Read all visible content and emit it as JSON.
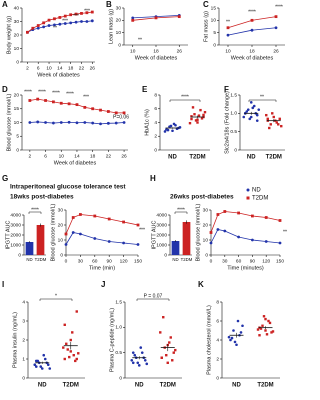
{
  "chart_data": [
    {
      "type": "line",
      "label": "A",
      "xlabel": "Week of diabetes",
      "ylabel": "Body weight (g)",
      "x": [
        2,
        4,
        6,
        8,
        10,
        12,
        14,
        16,
        18,
        20,
        22,
        24,
        26
      ],
      "xlim": [
        0,
        27
      ],
      "xticks": [
        2,
        6,
        10,
        14,
        18,
        22,
        26
      ],
      "ylim": [
        0,
        40
      ],
      "yticks": [
        0,
        10,
        20,
        30,
        40
      ],
      "series": [
        {
          "name": "ND",
          "color": "#2233aa",
          "marker": "circle",
          "values": [
            22,
            24,
            25,
            26,
            27,
            27.5,
            28,
            28.5,
            29,
            29.5,
            30,
            30,
            30.5
          ]
        },
        {
          "name": "T2DM",
          "color": "#cc2222",
          "marker": "square",
          "values": [
            22,
            25,
            27,
            29,
            31,
            32,
            33,
            34,
            35,
            35.5,
            36,
            36.5,
            37
          ]
        }
      ],
      "annotations": [
        "**",
        "***",
        "***",
        "***"
      ]
    },
    {
      "type": "line",
      "label": "B",
      "xlabel": "Week of diabetes",
      "ylabel": "Lean mass (g)",
      "x": [
        10,
        18,
        26
      ],
      "xlim": [
        7,
        29
      ],
      "xticks": [
        10,
        18,
        26
      ],
      "ylim": [
        0,
        30
      ],
      "yticks": [
        0,
        10,
        20,
        30
      ],
      "series": [
        {
          "name": "ND",
          "color": "#2233aa",
          "marker": "circle",
          "values": [
            22,
            23,
            24
          ]
        },
        {
          "name": "T2DM",
          "color": "#cc2222",
          "marker": "square",
          "values": [
            20,
            22,
            23
          ]
        }
      ],
      "annotations": [
        "**"
      ]
    },
    {
      "type": "line",
      "label": "C",
      "xlabel": "Week of diabetes",
      "ylabel": "Fat mass (g)",
      "x": [
        10,
        18,
        26
      ],
      "xlim": [
        7,
        29
      ],
      "xticks": [
        10,
        18,
        26
      ],
      "ylim": [
        0,
        15
      ],
      "yticks": [
        0,
        5,
        10,
        15
      ],
      "series": [
        {
          "name": "ND",
          "color": "#2233aa",
          "marker": "circle",
          "values": [
            4,
            6,
            7
          ]
        },
        {
          "name": "T2DM",
          "color": "#cc2222",
          "marker": "square",
          "values": [
            7,
            10,
            11.5
          ]
        }
      ],
      "annotations": [
        "**",
        "****",
        "****"
      ]
    },
    {
      "type": "line",
      "label": "D",
      "xlabel": "Week of diabetes",
      "ylabel": "Blood glucose (mmol/L)",
      "x": [
        2,
        4,
        6,
        8,
        10,
        12,
        14,
        16,
        18,
        20,
        22,
        24,
        26
      ],
      "xlim": [
        0,
        27
      ],
      "xticks": [
        2,
        6,
        10,
        14,
        18,
        22,
        26
      ],
      "ylim": [
        0,
        20
      ],
      "yticks": [
        0,
        5,
        10,
        15,
        20
      ],
      "series": [
        {
          "name": "ND",
          "color": "#2233aa",
          "marker": "circle",
          "values": [
            10,
            10.2,
            10,
            9.8,
            10,
            10.1,
            9.9,
            10,
            9.8,
            9.5,
            9.7,
            9.8,
            10
          ]
        },
        {
          "name": "T2DM",
          "color": "#cc2222",
          "marker": "square",
          "values": [
            18,
            18.5,
            18,
            17.5,
            17,
            16.8,
            16.5,
            15.5,
            15,
            14.5,
            14,
            13.5,
            13.5
          ]
        }
      ],
      "annotations": [
        "****",
        "****",
        "****",
        "****",
        "***",
        "P=0.06"
      ]
    },
    {
      "type": "strip",
      "label": "E",
      "ylabel": "HbA1c (%)",
      "categories": [
        "ND",
        "T2DM"
      ],
      "ylim": [
        0,
        8
      ],
      "yticks": [
        0,
        2,
        4,
        6,
        8
      ],
      "groups": [
        {
          "color": "#2233aa",
          "values": [
            3.0,
            3.4,
            2.8,
            3.6,
            3.2,
            2.9,
            3.5,
            3.8,
            3.1,
            2.7,
            3.3,
            3.0
          ],
          "mean": 3.2,
          "error": 0.1
        },
        {
          "color": "#cc2222",
          "values": [
            4.5,
            5.2,
            4.0,
            5.8,
            4.8,
            6.2,
            4.3,
            5.0,
            4.6,
            3.9,
            5.5,
            4.9,
            4.4,
            5.1
          ],
          "mean": 4.8,
          "error": 0.2
        }
      ],
      "annotations": [
        "****"
      ]
    },
    {
      "type": "strip",
      "label": "F",
      "ylabel": "Slc2a4/18s (Fold change)",
      "categories": [
        "ND",
        "T2DM"
      ],
      "ylim": [
        0,
        1.5
      ],
      "yticks": [
        0,
        0.5,
        {
          "value": 1,
          "label": "1.0"
        },
        1.5
      ],
      "groups": [
        {
          "color": "#2233aa",
          "values": [
            1.0,
            1.1,
            0.9,
            1.2,
            0.95,
            1.05,
            0.85,
            1.15,
            1.0,
            0.9,
            1.1,
            1.0,
            1.3,
            0.8
          ],
          "mean": 1.0,
          "error": 0.04
        },
        {
          "color": "#cc2222",
          "values": [
            0.8,
            0.7,
            0.9,
            0.75,
            0.85,
            0.6,
            1.0,
            0.8,
            0.7,
            0.95,
            0.65,
            0.85
          ],
          "mean": 0.8,
          "error": 0.04
        }
      ],
      "annotations": [
        "**"
      ]
    },
    {
      "type": "bar",
      "label": "G",
      "title": "Intraperitoneal glucose tolerance test",
      "subtitle": "18wks post-diabetes",
      "ylabel": "IPGTT AUC",
      "categories": [
        "ND",
        "T2DM"
      ],
      "values": [
        1300,
        3000
      ],
      "errors": [
        80,
        150
      ],
      "colors": [
        "#2233aa",
        "#cc2222"
      ],
      "ylim": [
        0,
        4000
      ],
      "yticks": [
        0,
        1000,
        2000,
        3000,
        4000
      ],
      "annotations": [
        "****"
      ]
    },
    {
      "type": "line",
      "xlabel": "Time (min)",
      "ylabel": "Blood glucose (mmol/L)",
      "x": [
        0,
        15,
        30,
        60,
        90,
        120,
        150
      ],
      "xlim": [
        0,
        150
      ],
      "xticks": [
        0,
        30,
        60,
        90,
        120,
        150
      ],
      "ylim": [
        0,
        30
      ],
      "yticks": [
        0,
        10,
        20,
        30
      ],
      "series": [
        {
          "name": "ND",
          "color": "#2233aa",
          "marker": "circle",
          "values": [
            7,
            15,
            14,
            11,
            9,
            8,
            7
          ]
        },
        {
          "name": "T2DM",
          "color": "#cc2222",
          "marker": "square",
          "values": [
            14,
            25,
            27,
            26,
            24,
            22,
            20
          ]
        }
      ],
      "annotations": [
        "***"
      ]
    },
    {
      "type": "bar",
      "label": "H",
      "subtitle": "26wks post-diabetes",
      "ylabel": "IPGTT AUC",
      "categories": [
        "ND",
        "T2DM"
      ],
      "values": [
        1400,
        3300
      ],
      "errors": [
        90,
        160
      ],
      "colors": [
        "#2233aa",
        "#cc2222"
      ],
      "ylim": [
        0,
        4000
      ],
      "yticks": [
        0,
        1000,
        2000,
        3000,
        4000
      ],
      "annotations": [
        "****"
      ]
    },
    {
      "type": "line",
      "xlabel": "Time (minutes)",
      "ylabel": "Blood glucose (mmol/L)",
      "legend": true,
      "x": [
        0,
        15,
        30,
        60,
        90,
        120,
        150
      ],
      "xlim": [
        0,
        150
      ],
      "xticks": [
        0,
        30,
        60,
        90,
        120,
        150
      ],
      "ylim": [
        0,
        30
      ],
      "yticks": [
        0,
        10,
        20,
        30
      ],
      "series": [
        {
          "name": "ND",
          "color": "#2233aa",
          "marker": "circle",
          "values": [
            8,
            17,
            16,
            12,
            10,
            9,
            8
          ]
        },
        {
          "name": "T2DM",
          "color": "#cc2222",
          "marker": "square",
          "values": [
            15,
            27,
            29,
            28,
            26,
            25,
            23
          ]
        }
      ],
      "annotations": [
        "**"
      ]
    },
    {
      "type": "strip",
      "label": "I",
      "ylabel": "Plasma insulin (ng/mL)",
      "categories": [
        "ND",
        "T2DM"
      ],
      "ylim": [
        0,
        4
      ],
      "yticks": [
        0,
        1,
        2,
        3,
        4
      ],
      "groups": [
        {
          "color": "#2233aa",
          "values": [
            0.6,
            0.8,
            0.5,
            1.0,
            0.7,
            0.9,
            0.6,
            1.2,
            0.8,
            0.7,
            0.5,
            0.9
          ],
          "mean": 0.8,
          "error": 0.06
        },
        {
          "color": "#cc2222",
          "values": [
            1.0,
            1.5,
            2.0,
            1.2,
            3.5,
            1.8,
            1.1,
            2.4,
            0.9,
            1.6,
            1.3,
            2.8,
            1.4,
            1.0
          ],
          "mean": 1.7,
          "error": 0.2
        }
      ],
      "annotations": [
        "*"
      ]
    },
    {
      "type": "strip",
      "label": "J",
      "ylabel": "Plasma C-peptide (ng/mL)",
      "categories": [
        "ND",
        "T2DM"
      ],
      "ylim": [
        0,
        1.5
      ],
      "yticks": [
        0,
        0.5,
        {
          "value": 1,
          "label": "1.0"
        },
        1.5
      ],
      "groups": [
        {
          "color": "#2233aa",
          "values": [
            0.3,
            0.4,
            0.25,
            0.5,
            0.35,
            0.45,
            0.3,
            0.6,
            0.4,
            0.35,
            0.28,
            0.5
          ],
          "mean": 0.4,
          "error": 0.03
        },
        {
          "color": "#cc2222",
          "values": [
            0.4,
            0.6,
            0.3,
            0.8,
            0.5,
            1.2,
            0.45,
            0.7,
            0.35,
            0.9,
            0.55,
            0.4,
            0.65
          ],
          "mean": 0.6,
          "error": 0.07
        }
      ],
      "annotations": [
        "P = 0.07"
      ]
    },
    {
      "type": "strip",
      "label": "K",
      "ylabel": "Plasma cholesterol (mmol/L)",
      "categories": [
        "ND",
        "T2DM"
      ],
      "ylim": [
        0,
        8
      ],
      "yticks": [
        0,
        2,
        4,
        6,
        8
      ],
      "groups": [
        {
          "color": "#2233aa",
          "values": [
            4.0,
            5.0,
            3.5,
            4.5,
            5.5,
            4.2,
            3.8,
            6.0,
            4.8,
            4.3
          ],
          "mean": 4.5,
          "error": 0.25
        },
        {
          "color": "#cc2222",
          "values": [
            4.5,
            5.5,
            5.0,
            6.0,
            4.8,
            5.2,
            6.5,
            4.6,
            5.8,
            5.1,
            4.9,
            5.3,
            6.2
          ],
          "mean": 5.3,
          "error": 0.15
        }
      ]
    }
  ]
}
